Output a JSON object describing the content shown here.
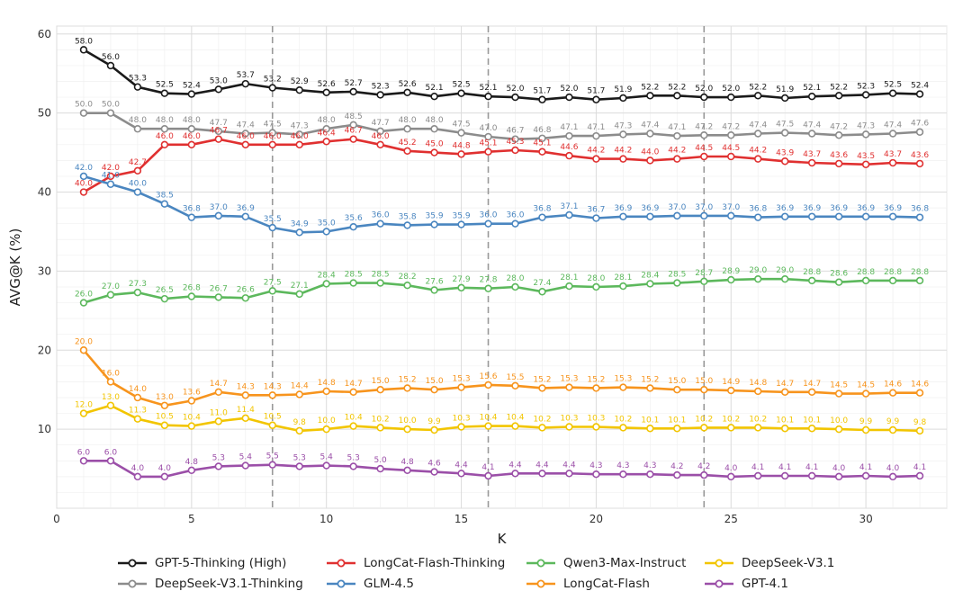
{
  "chart_data": {
    "type": "line",
    "title": "",
    "xlabel": "K",
    "ylabel": "AVG@K (%)",
    "xlim": [
      0,
      33
    ],
    "ylim": [
      0,
      61
    ],
    "xticks": [
      0,
      5,
      10,
      15,
      20,
      25,
      30
    ],
    "yticks": [
      10,
      20,
      30,
      40,
      50,
      60
    ],
    "vlines": [
      8,
      16,
      24
    ],
    "grid": true,
    "legend_position": "bottom",
    "x": [
      1,
      2,
      3,
      4,
      5,
      6,
      7,
      8,
      9,
      10,
      11,
      12,
      13,
      14,
      15,
      16,
      17,
      18,
      19,
      20,
      21,
      22,
      23,
      24,
      25,
      26,
      27,
      28,
      29,
      30,
      31,
      32
    ],
    "series": [
      {
        "name": "GPT-5-Thinking (High)",
        "color": "#1a1a1a",
        "values": [
          58.0,
          56.0,
          53.3,
          52.5,
          52.4,
          53.0,
          53.7,
          53.2,
          52.9,
          52.6,
          52.7,
          52.3,
          52.6,
          52.1,
          52.5,
          52.1,
          52.0,
          51.7,
          52.0,
          51.7,
          51.9,
          52.2,
          52.2,
          52.0,
          52.0,
          52.2,
          51.9,
          52.1,
          52.2,
          52.3,
          52.5,
          52.4
        ]
      },
      {
        "name": "DeepSeek-V3.1-Thinking",
        "color": "#8c8c8c",
        "values": [
          50.0,
          50.0,
          48.0,
          48.0,
          48.0,
          47.7,
          47.4,
          47.5,
          47.3,
          48.0,
          48.5,
          47.7,
          48.0,
          48.0,
          47.5,
          47.0,
          46.7,
          46.8,
          47.1,
          47.1,
          47.3,
          47.4,
          47.1,
          47.2,
          47.2,
          47.4,
          47.5,
          47.4,
          47.2,
          47.3,
          47.4,
          47.6
        ]
      },
      {
        "name": "LongCat-Flash-Thinking",
        "color": "#e03030",
        "values": [
          40.0,
          42.0,
          42.7,
          46.0,
          46.0,
          46.7,
          46.0,
          46.0,
          46.0,
          46.4,
          46.7,
          46.0,
          45.2,
          45.0,
          44.8,
          45.1,
          45.3,
          45.1,
          44.6,
          44.2,
          44.2,
          44.0,
          44.2,
          44.5,
          44.5,
          44.2,
          43.9,
          43.7,
          43.6,
          43.5,
          43.7,
          43.6
        ]
      },
      {
        "name": "GLM-4.5",
        "color": "#4a86c0",
        "values": [
          42.0,
          41.0,
          40.0,
          38.5,
          36.8,
          37.0,
          36.9,
          35.5,
          34.9,
          35.0,
          35.6,
          36.0,
          35.8,
          35.9,
          35.9,
          36.0,
          36.0,
          36.8,
          37.1,
          36.7,
          36.9,
          36.9,
          37.0,
          37.0,
          37.0,
          36.8,
          36.9,
          36.9,
          36.9,
          36.9,
          36.9,
          36.8
        ]
      },
      {
        "name": "Qwen3-Max-Instruct",
        "color": "#5cb85c",
        "values": [
          26.0,
          27.0,
          27.3,
          26.5,
          26.8,
          26.7,
          26.6,
          27.5,
          27.1,
          28.4,
          28.5,
          28.5,
          28.2,
          27.6,
          27.9,
          27.8,
          28.0,
          27.4,
          28.1,
          28.0,
          28.1,
          28.4,
          28.5,
          28.7,
          28.9,
          29.0,
          29.0,
          28.8,
          28.6,
          28.8,
          28.8,
          28.8
        ]
      },
      {
        "name": "LongCat-Flash",
        "color": "#f7941d",
        "values": [
          20.0,
          16.0,
          14.0,
          13.0,
          13.6,
          14.7,
          14.3,
          14.3,
          14.4,
          14.8,
          14.7,
          15.0,
          15.2,
          15.0,
          15.3,
          15.6,
          15.5,
          15.2,
          15.3,
          15.2,
          15.3,
          15.2,
          15.0,
          15.0,
          14.9,
          14.8,
          14.7,
          14.7,
          14.5,
          14.5,
          14.6,
          14.6
        ]
      },
      {
        "name": "DeepSeek-V3.1",
        "color": "#f2c500",
        "values": [
          12.0,
          13.0,
          11.3,
          10.5,
          10.4,
          11.0,
          11.4,
          10.5,
          9.8,
          10.0,
          10.4,
          10.2,
          10.0,
          9.9,
          10.3,
          10.4,
          10.4,
          10.2,
          10.3,
          10.3,
          10.2,
          10.1,
          10.1,
          10.2,
          10.2,
          10.2,
          10.1,
          10.1,
          10.0,
          9.9,
          9.9,
          9.8
        ]
      },
      {
        "name": "GPT-4.1",
        "color": "#9b4fa8",
        "values": [
          6.0,
          6.0,
          4.0,
          4.0,
          4.8,
          5.3,
          5.4,
          5.5,
          5.3,
          5.4,
          5.3,
          5.0,
          4.8,
          4.6,
          4.4,
          4.1,
          4.4,
          4.4,
          4.4,
          4.3,
          4.3,
          4.3,
          4.2,
          4.2,
          4.0,
          4.1,
          4.1,
          4.1,
          4.0,
          4.1,
          4.0,
          4.1
        ]
      }
    ],
    "legend_order": [
      0,
      2,
      4,
      6,
      1,
      3,
      5,
      7
    ]
  }
}
